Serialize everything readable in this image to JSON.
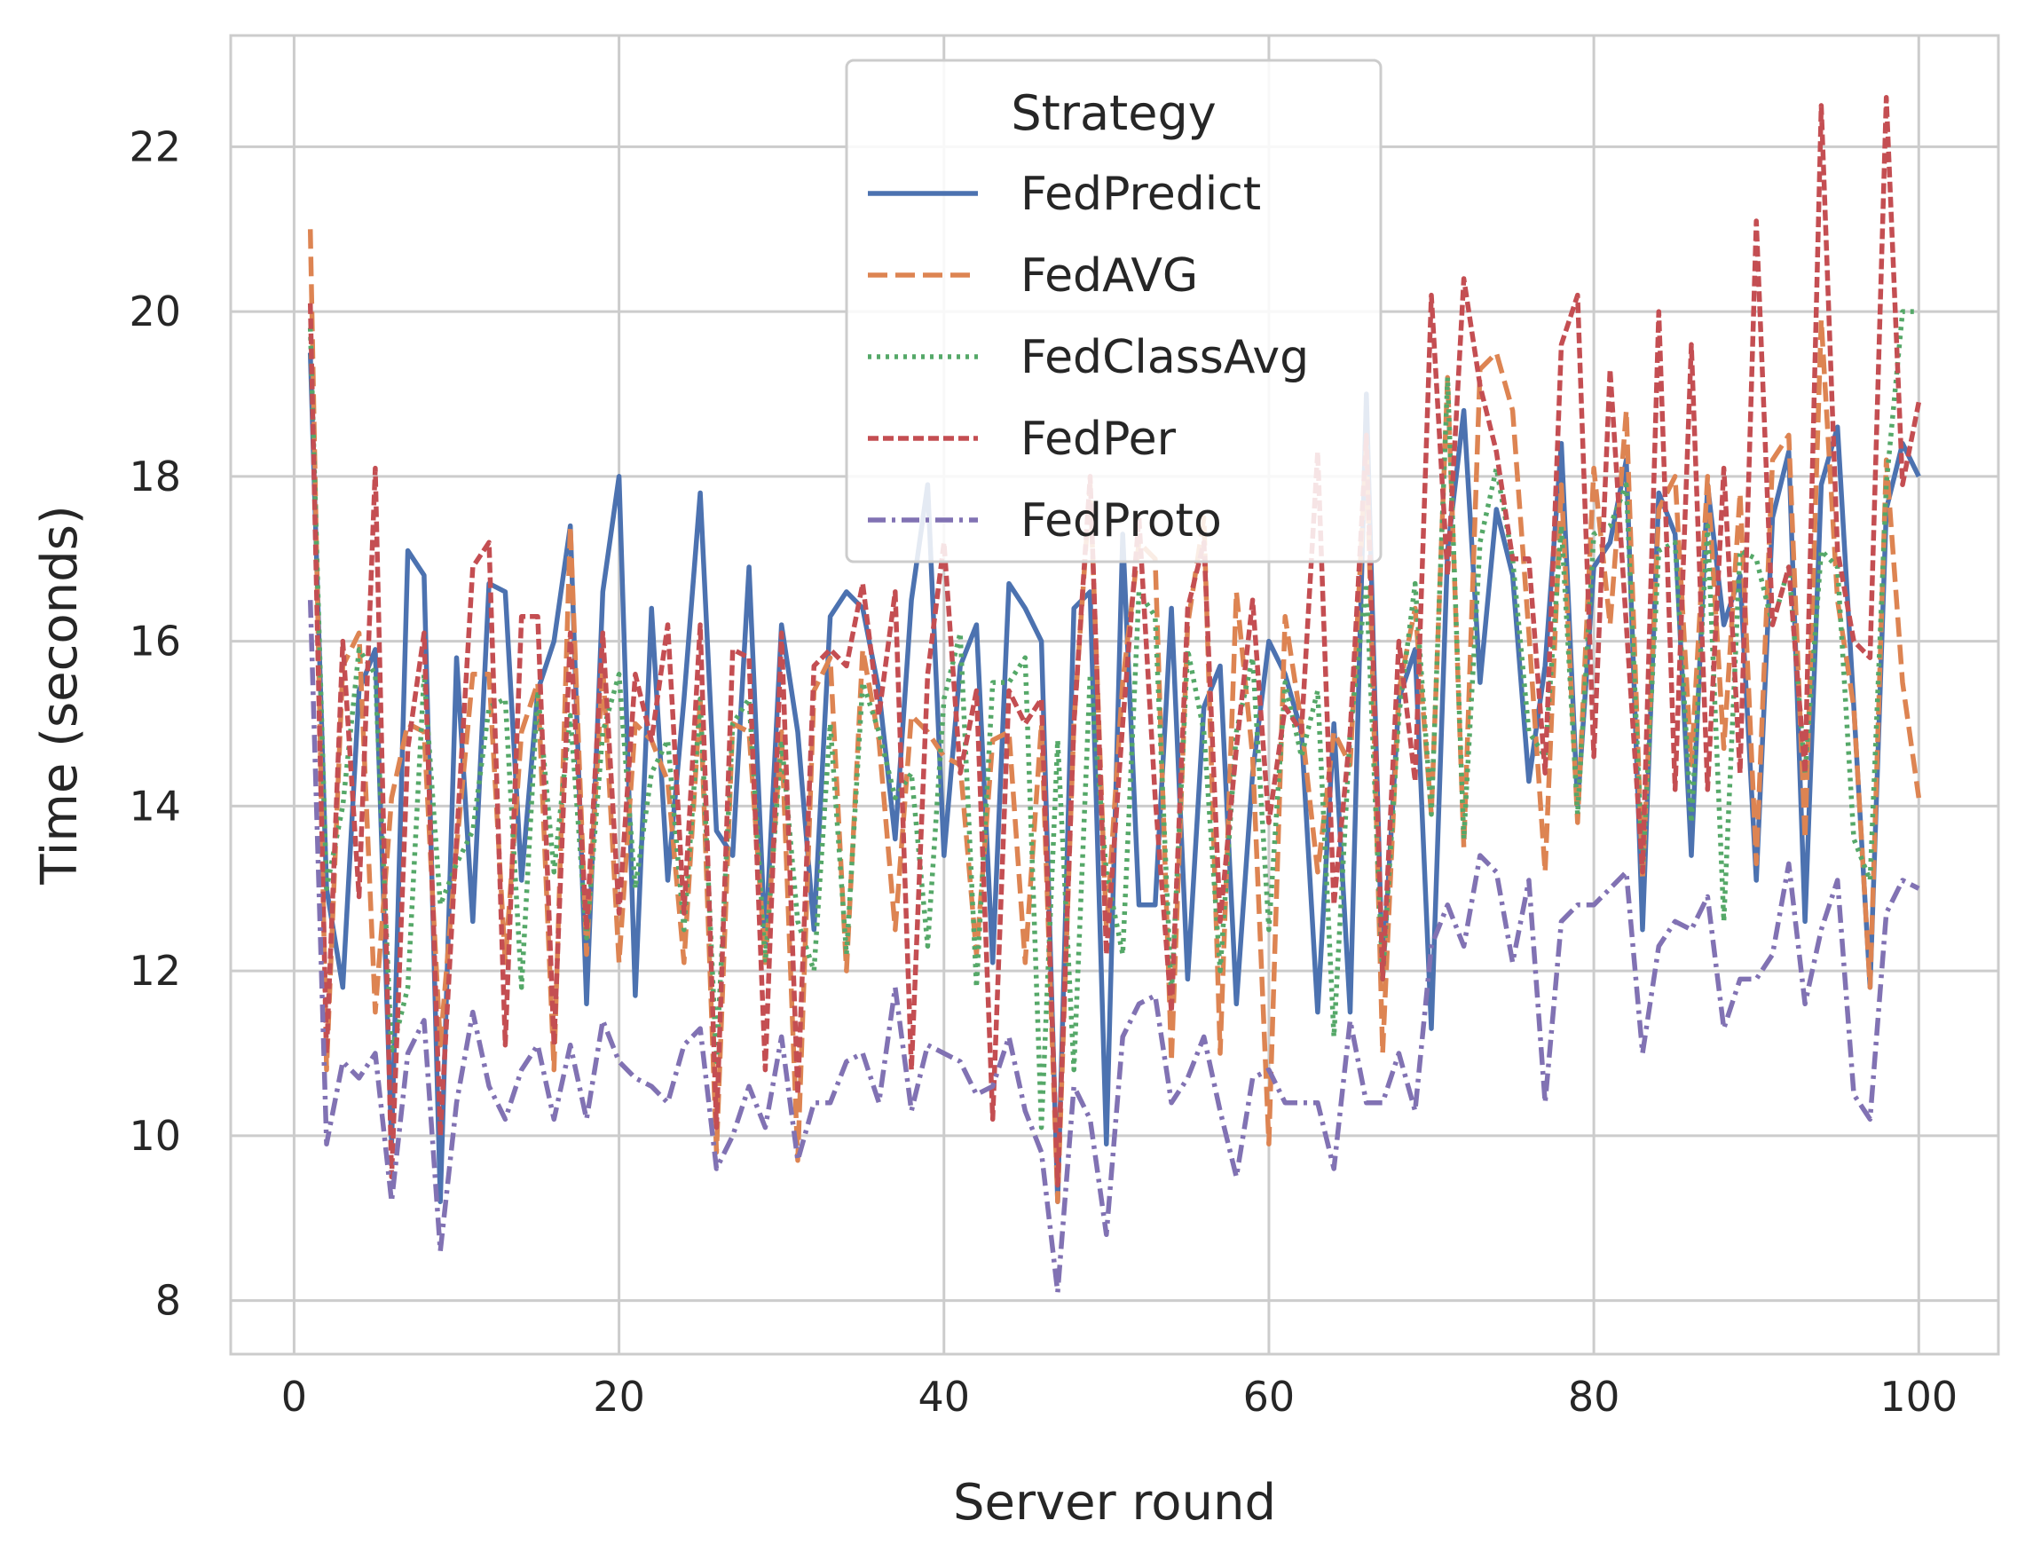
{
  "chart_data": {
    "type": "line",
    "xlabel": "Server round",
    "ylabel": "Time (seconds)",
    "xlim": [
      -3.9,
      104.9
    ],
    "ylim": [
      7.35,
      23.35
    ],
    "xticks": [
      0,
      20,
      40,
      60,
      80,
      100
    ],
    "yticks": [
      8,
      10,
      12,
      14,
      16,
      18,
      20,
      22
    ],
    "grid": true,
    "legend": {
      "title": "Strategy",
      "position": "upper-center"
    },
    "x": [
      1,
      2,
      3,
      4,
      5,
      6,
      7,
      8,
      9,
      10,
      11,
      12,
      13,
      14,
      15,
      16,
      17,
      18,
      19,
      20,
      21,
      22,
      23,
      24,
      25,
      26,
      27,
      28,
      29,
      30,
      31,
      32,
      33,
      34,
      35,
      36,
      37,
      38,
      39,
      40,
      41,
      42,
      43,
      44,
      45,
      46,
      47,
      48,
      49,
      50,
      51,
      52,
      53,
      54,
      55,
      56,
      57,
      58,
      59,
      60,
      61,
      62,
      63,
      64,
      65,
      66,
      67,
      68,
      69,
      70,
      71,
      72,
      73,
      74,
      75,
      76,
      77,
      78,
      79,
      80,
      81,
      82,
      83,
      84,
      85,
      86,
      87,
      88,
      89,
      90,
      91,
      92,
      93,
      94,
      95,
      96,
      97,
      98,
      99,
      100
    ],
    "series": [
      {
        "name": "FedPredict",
        "color": "#4c72b0",
        "dash": "solid",
        "values": [
          19.5,
          13.0,
          11.8,
          15.4,
          15.9,
          9.9,
          17.1,
          16.8,
          9.2,
          15.8,
          12.6,
          16.7,
          16.6,
          13.1,
          15.4,
          16.0,
          17.4,
          11.6,
          16.6,
          18.0,
          11.7,
          16.4,
          13.1,
          15.3,
          17.8,
          13.7,
          13.4,
          16.9,
          12.3,
          16.2,
          14.9,
          12.5,
          16.3,
          16.6,
          16.4,
          15.4,
          13.6,
          16.5,
          17.9,
          13.4,
          15.7,
          16.2,
          12.1,
          16.7,
          16.4,
          16.0,
          9.2,
          16.4,
          16.6,
          9.9,
          17.3,
          12.8,
          12.8,
          16.4,
          11.9,
          15.2,
          15.7,
          11.6,
          14.4,
          16.0,
          15.6,
          14.9,
          11.5,
          15.0,
          11.5,
          19.0,
          11.9,
          15.3,
          15.9,
          11.3,
          17.1,
          18.8,
          15.5,
          17.6,
          16.8,
          14.3,
          15.7,
          18.4,
          14.0,
          16.9,
          17.2,
          18.2,
          12.5,
          17.8,
          17.3,
          13.4,
          17.9,
          16.2,
          16.8,
          13.1,
          17.5,
          18.3,
          12.6,
          17.9,
          18.6,
          15.2,
          11.8,
          17.6,
          18.4,
          18.0
        ]
      },
      {
        "name": "FedAVG",
        "color": "#dd8452",
        "dash": "dashed",
        "values": [
          21.0,
          10.8,
          15.7,
          16.1,
          11.5,
          14.1,
          15.0,
          14.9,
          11.1,
          13.5,
          15.6,
          15.6,
          12.1,
          14.9,
          15.5,
          10.8,
          17.4,
          12.2,
          15.7,
          12.1,
          15.0,
          14.8,
          14.3,
          12.1,
          15.3,
          9.8,
          15.0,
          14.9,
          12.1,
          14.9,
          9.7,
          15.4,
          15.8,
          12.0,
          15.9,
          14.8,
          12.5,
          15.1,
          14.9,
          14.6,
          14.5,
          12.2,
          14.8,
          14.9,
          12.1,
          15.0,
          9.2,
          15.0,
          17.9,
          12.5,
          15.5,
          17.2,
          17.0,
          10.9,
          16.2,
          17.5,
          11.0,
          16.6,
          14.6,
          9.9,
          16.3,
          15.0,
          13.2,
          14.9,
          14.5,
          18.4,
          11.0,
          15.4,
          16.4,
          13.9,
          19.2,
          13.5,
          19.3,
          19.5,
          18.8,
          16.1,
          13.2,
          17.9,
          13.8,
          18.1,
          16.2,
          18.8,
          13.1,
          17.6,
          18.0,
          14.5,
          18.0,
          14.7,
          17.8,
          13.3,
          18.2,
          18.5,
          13.6,
          19.9,
          16.5,
          15.2,
          11.8,
          18.2,
          15.5,
          14.1
        ]
      },
      {
        "name": "FedClassAvg",
        "color": "#55a868",
        "dash": "dotted",
        "values": [
          19.8,
          13.0,
          14.0,
          15.9,
          15.6,
          11.0,
          11.8,
          15.6,
          12.8,
          13.3,
          13.7,
          15.2,
          15.3,
          11.8,
          15.4,
          13.2,
          15.1,
          12.4,
          14.9,
          15.6,
          13.0,
          14.4,
          14.8,
          12.5,
          15.3,
          10.9,
          15.0,
          15.3,
          12.1,
          14.8,
          12.6,
          12.0,
          15.0,
          12.2,
          15.5,
          14.9,
          14.1,
          14.4,
          12.3,
          15.3,
          16.1,
          11.8,
          15.5,
          15.5,
          15.8,
          10.1,
          14.8,
          10.8,
          15.6,
          13.2,
          12.2,
          16.6,
          16.3,
          11.7,
          15.9,
          14.9,
          12.0,
          14.9,
          15.8,
          12.5,
          15.5,
          14.6,
          15.4,
          11.2,
          14.9,
          16.7,
          11.9,
          15.1,
          16.7,
          13.9,
          19.2,
          13.6,
          17.2,
          18.1,
          17.0,
          14.9,
          14.6,
          17.4,
          13.9,
          17.3,
          17.4,
          17.9,
          13.2,
          17.1,
          17.2,
          13.8,
          17.4,
          12.6,
          17.1,
          17.0,
          16.2,
          16.9,
          14.4,
          17.1,
          16.9,
          13.6,
          13.1,
          17.9,
          20.0,
          20.0
        ]
      },
      {
        "name": "FedPer",
        "color": "#c44e52",
        "dash": "short-dash",
        "values": [
          20.1,
          11.0,
          16.0,
          12.9,
          18.1,
          9.5,
          14.7,
          16.1,
          10.0,
          13.6,
          16.9,
          17.2,
          11.1,
          16.3,
          16.3,
          11.1,
          16.1,
          12.5,
          16.1,
          12.7,
          15.6,
          14.8,
          16.2,
          12.7,
          16.2,
          10.1,
          15.9,
          15.8,
          10.8,
          16.1,
          10.5,
          15.7,
          15.9,
          15.7,
          16.7,
          15.1,
          16.6,
          10.8,
          15.6,
          17.2,
          14.4,
          15.4,
          10.2,
          15.4,
          15.0,
          15.3,
          9.4,
          15.0,
          18.0,
          12.2,
          15.0,
          17.5,
          14.1,
          11.5,
          16.4,
          17.2,
          12.6,
          14.7,
          16.5,
          13.8,
          15.2,
          14.9,
          18.3,
          12.8,
          14.9,
          18.5,
          11.9,
          16.0,
          14.3,
          20.2,
          16.8,
          20.4,
          19.1,
          18.3,
          17.0,
          17.0,
          14.4,
          19.6,
          20.2,
          14.6,
          19.3,
          16.2,
          13.2,
          20.0,
          14.2,
          19.6,
          14.2,
          18.1,
          14.4,
          21.1,
          16.2,
          16.9,
          14.4,
          22.5,
          17.1,
          16.0,
          15.8,
          22.6,
          17.9,
          18.9
        ]
      },
      {
        "name": "FedProto",
        "color": "#8172b3",
        "dash": "dash-dot",
        "values": [
          16.5,
          9.9,
          10.9,
          10.7,
          11.0,
          9.2,
          11.0,
          11.4,
          8.6,
          10.4,
          11.5,
          10.6,
          10.2,
          10.8,
          11.1,
          10.2,
          11.1,
          10.2,
          11.4,
          10.9,
          10.7,
          10.6,
          10.4,
          11.1,
          11.3,
          9.6,
          10.0,
          10.6,
          10.1,
          11.2,
          9.7,
          10.4,
          10.4,
          10.9,
          11.0,
          10.4,
          11.8,
          10.3,
          11.1,
          11.0,
          10.9,
          10.5,
          10.6,
          11.2,
          10.3,
          9.8,
          8.1,
          10.6,
          10.2,
          8.8,
          11.2,
          11.6,
          11.7,
          10.4,
          10.7,
          11.2,
          10.3,
          9.5,
          10.7,
          10.8,
          10.4,
          10.4,
          10.4,
          9.6,
          11.4,
          10.4,
          10.4,
          11.0,
          10.3,
          12.3,
          12.8,
          12.3,
          13.4,
          13.2,
          12.1,
          13.1,
          10.4,
          12.6,
          12.8,
          12.8,
          13.0,
          13.2,
          11.0,
          12.3,
          12.6,
          12.5,
          12.9,
          11.3,
          11.9,
          11.9,
          12.2,
          13.3,
          11.6,
          12.5,
          13.1,
          10.5,
          10.2,
          12.7,
          13.1,
          13.0
        ]
      }
    ]
  }
}
